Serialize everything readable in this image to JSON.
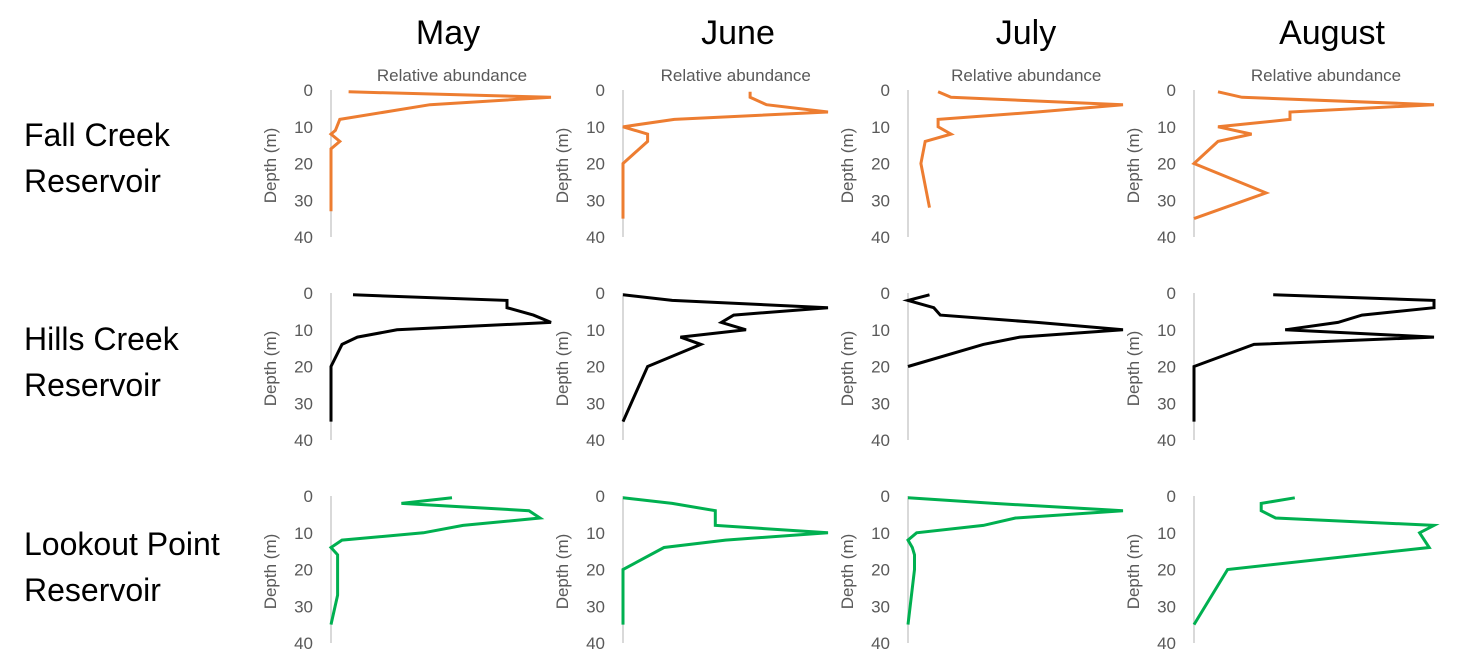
{
  "months": [
    "May",
    "June",
    "July",
    "August"
  ],
  "reservoirs": [
    {
      "line1": "Fall Creek",
      "line2": "Reservoir"
    },
    {
      "line1": "Hills Creek",
      "line2": "Reservoir"
    },
    {
      "line1": "Lookout Point",
      "line2": "Reservoir"
    }
  ],
  "chart_data": {
    "type": "line",
    "xlabel": "Relative abundance",
    "ylabel": "Depth (m)",
    "ylim": [
      0,
      40
    ],
    "y_inverted": true,
    "yticks": [
      0,
      10,
      20,
      30,
      40
    ],
    "xlim": [
      0,
      1
    ],
    "x_axis_position": "top",
    "grid": false,
    "colors": {
      "Fall Creek Reservoir": "#ED7D31",
      "Hills Creek Reservoir": "#000000",
      "Lookout Point Reservoir": "#00B050"
    },
    "panels": [
      {
        "reservoir": "Fall Creek Reservoir",
        "month": "May",
        "show_xlabel": true,
        "points": [
          [
            0.08,
            0.5
          ],
          [
            1.0,
            2
          ],
          [
            0.45,
            4
          ],
          [
            0.04,
            8
          ],
          [
            0.02,
            11
          ],
          [
            0.0,
            12
          ],
          [
            0.04,
            14
          ],
          [
            0.0,
            16
          ],
          [
            0.0,
            20
          ],
          [
            0.0,
            33
          ]
        ]
      },
      {
        "reservoir": "Fall Creek Reservoir",
        "month": "June",
        "show_xlabel": true,
        "points": [
          [
            0.62,
            0.5
          ],
          [
            0.62,
            2
          ],
          [
            0.7,
            4
          ],
          [
            1.0,
            6
          ],
          [
            0.25,
            8
          ],
          [
            0.0,
            10
          ],
          [
            0.12,
            12
          ],
          [
            0.12,
            14
          ],
          [
            0.0,
            20
          ],
          [
            0.0,
            35
          ]
        ]
      },
      {
        "reservoir": "Fall Creek Reservoir",
        "month": "July",
        "show_xlabel": true,
        "points": [
          [
            0.14,
            0.5
          ],
          [
            0.2,
            2
          ],
          [
            1.0,
            4
          ],
          [
            0.6,
            6
          ],
          [
            0.14,
            8
          ],
          [
            0.14,
            10
          ],
          [
            0.2,
            12
          ],
          [
            0.08,
            14
          ],
          [
            0.06,
            20
          ],
          [
            0.1,
            32
          ]
        ]
      },
      {
        "reservoir": "Fall Creek Reservoir",
        "month": "August",
        "show_xlabel": true,
        "points": [
          [
            0.1,
            0.5
          ],
          [
            0.2,
            2
          ],
          [
            1.0,
            4
          ],
          [
            0.4,
            6
          ],
          [
            0.4,
            8
          ],
          [
            0.1,
            10
          ],
          [
            0.24,
            12
          ],
          [
            0.1,
            14
          ],
          [
            0.0,
            20
          ],
          [
            0.3,
            28
          ],
          [
            0.0,
            35
          ]
        ]
      },
      {
        "reservoir": "Hills Creek Reservoir",
        "month": "May",
        "show_xlabel": false,
        "points": [
          [
            0.1,
            0.5
          ],
          [
            0.8,
            2
          ],
          [
            0.8,
            4
          ],
          [
            0.92,
            6
          ],
          [
            1.0,
            8
          ],
          [
            0.3,
            10
          ],
          [
            0.12,
            12
          ],
          [
            0.05,
            14
          ],
          [
            0.0,
            20
          ],
          [
            0.0,
            35
          ]
        ]
      },
      {
        "reservoir": "Hills Creek Reservoir",
        "month": "June",
        "show_xlabel": false,
        "points": [
          [
            0.0,
            0.5
          ],
          [
            0.24,
            2
          ],
          [
            1.0,
            4
          ],
          [
            0.54,
            6
          ],
          [
            0.48,
            8
          ],
          [
            0.6,
            10
          ],
          [
            0.28,
            12
          ],
          [
            0.38,
            14
          ],
          [
            0.12,
            20
          ],
          [
            0.0,
            35
          ]
        ]
      },
      {
        "reservoir": "Hills Creek Reservoir",
        "month": "July",
        "show_xlabel": false,
        "points": [
          [
            0.1,
            0.5
          ],
          [
            0.0,
            2
          ],
          [
            0.12,
            4
          ],
          [
            0.15,
            6
          ],
          [
            0.6,
            8
          ],
          [
            1.0,
            10
          ],
          [
            0.52,
            12
          ],
          [
            0.35,
            14
          ],
          [
            0.0,
            20
          ]
        ]
      },
      {
        "reservoir": "Hills Creek Reservoir",
        "month": "August",
        "show_xlabel": false,
        "points": [
          [
            0.33,
            0.5
          ],
          [
            1.0,
            2
          ],
          [
            1.0,
            4
          ],
          [
            0.7,
            6
          ],
          [
            0.6,
            8
          ],
          [
            0.38,
            10
          ],
          [
            1.0,
            12
          ],
          [
            0.25,
            14
          ],
          [
            0.0,
            20
          ],
          [
            0.0,
            35
          ]
        ]
      },
      {
        "reservoir": "Lookout Point Reservoir",
        "month": "May",
        "show_xlabel": false,
        "points": [
          [
            0.55,
            0.5
          ],
          [
            0.32,
            2
          ],
          [
            0.9,
            4
          ],
          [
            0.95,
            6
          ],
          [
            0.6,
            8
          ],
          [
            0.42,
            10
          ],
          [
            0.05,
            12
          ],
          [
            0.0,
            14
          ],
          [
            0.03,
            16
          ],
          [
            0.03,
            20
          ],
          [
            0.03,
            27
          ],
          [
            0.0,
            35
          ]
        ]
      },
      {
        "reservoir": "Lookout Point Reservoir",
        "month": "June",
        "show_xlabel": false,
        "points": [
          [
            0.0,
            0.5
          ],
          [
            0.24,
            2
          ],
          [
            0.45,
            4
          ],
          [
            0.45,
            8
          ],
          [
            1.0,
            10
          ],
          [
            0.5,
            12
          ],
          [
            0.2,
            14
          ],
          [
            0.0,
            20
          ],
          [
            0.0,
            35
          ]
        ]
      },
      {
        "reservoir": "Lookout Point Reservoir",
        "month": "July",
        "show_xlabel": false,
        "points": [
          [
            0.0,
            0.5
          ],
          [
            0.4,
            2
          ],
          [
            1.0,
            4
          ],
          [
            0.5,
            6
          ],
          [
            0.35,
            8
          ],
          [
            0.04,
            10
          ],
          [
            0.0,
            12
          ],
          [
            0.02,
            14
          ],
          [
            0.03,
            16
          ],
          [
            0.03,
            20
          ],
          [
            0.0,
            35
          ]
        ]
      },
      {
        "reservoir": "Lookout Point Reservoir",
        "month": "August",
        "show_xlabel": false,
        "points": [
          [
            0.42,
            0.5
          ],
          [
            0.28,
            2
          ],
          [
            0.28,
            4
          ],
          [
            0.34,
            6
          ],
          [
            1.0,
            8
          ],
          [
            0.94,
            10
          ],
          [
            0.98,
            14
          ],
          [
            0.14,
            20
          ],
          [
            0.0,
            35
          ]
        ]
      }
    ]
  }
}
